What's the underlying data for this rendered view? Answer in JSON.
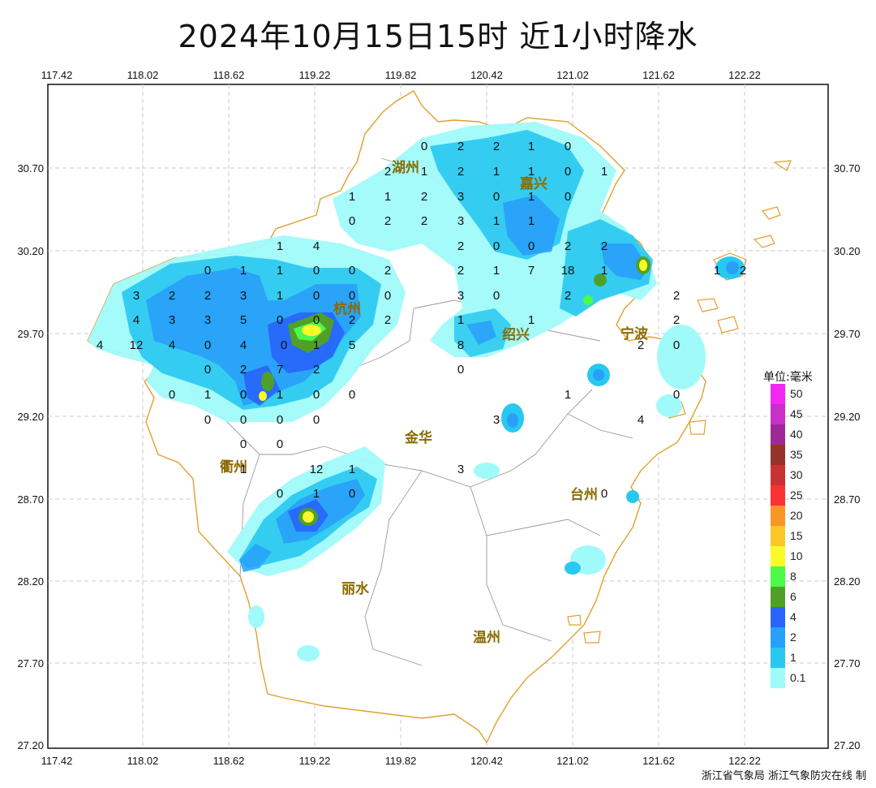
{
  "title": "2024年10月15日15时  近1小时降水",
  "axes": {
    "lon_labels": [
      "117.42",
      "118.02",
      "118.62",
      "119.22",
      "119.82",
      "120.42",
      "121.02",
      "121.62",
      "122.22"
    ],
    "lat_labels": [
      "30.70",
      "30.20",
      "29.70",
      "29.20",
      "28.70",
      "28.20",
      "27.70",
      "27.20"
    ]
  },
  "legend": {
    "title": "单位:毫米",
    "levels": [
      {
        "label": "50",
        "color": "#f028f0"
      },
      {
        "label": "45",
        "color": "#c830c8"
      },
      {
        "label": "40",
        "color": "#a02896"
      },
      {
        "label": "35",
        "color": "#963228"
      },
      {
        "label": "30",
        "color": "#c83232"
      },
      {
        "label": "25",
        "color": "#fa3232"
      },
      {
        "label": "20",
        "color": "#fa9628"
      },
      {
        "label": "15",
        "color": "#fac828"
      },
      {
        "label": "10",
        "color": "#fafa28"
      },
      {
        "label": "8",
        "color": "#4bfa4b"
      },
      {
        "label": "6",
        "color": "#50a028"
      },
      {
        "label": "4",
        "color": "#2864fa"
      },
      {
        "label": "2",
        "color": "#28a0fa"
      },
      {
        "label": "1",
        "color": "#28c8f0"
      },
      {
        "label": "0.1",
        "color": "#a0fafa"
      }
    ]
  },
  "cities": [
    "湖州",
    "嘉兴",
    "杭州",
    "绍兴",
    "宁波",
    "衢州",
    "金华",
    "台州",
    "丽水",
    "温州"
  ],
  "station_values": [
    "0",
    "2",
    "2",
    "1",
    "0",
    "2",
    "1",
    "2",
    "1",
    "1",
    "0",
    "1",
    "1",
    "1",
    "2",
    "3",
    "0",
    "1",
    "0",
    "0",
    "2",
    "2",
    "3",
    "1",
    "1",
    "1",
    "4",
    "2",
    "0",
    "0",
    "2",
    "2",
    "0",
    "1",
    "1",
    "0",
    "0",
    "2",
    "2",
    "1",
    "7",
    "18",
    "1",
    "1",
    "2",
    "3",
    "2",
    "2",
    "3",
    "1",
    "0",
    "0",
    "0",
    "3",
    "0",
    "2",
    "2",
    "4",
    "3",
    "3",
    "5",
    "0",
    "0",
    "2",
    "2",
    "1",
    "1",
    "2",
    "4",
    "12",
    "4",
    "0",
    "4",
    "0",
    "1",
    "5",
    "8",
    "2",
    "0",
    "0",
    "2",
    "7",
    "2",
    "0",
    "0",
    "1",
    "0",
    "1",
    "0",
    "0",
    "1",
    "0",
    "0",
    "0",
    "0",
    "0",
    "3",
    "4",
    "0",
    "0",
    "1",
    "12",
    "1",
    "3",
    "0",
    "1",
    "0",
    "0"
  ],
  "credit": "浙江省气象局  浙江气象防灾在线 制"
}
